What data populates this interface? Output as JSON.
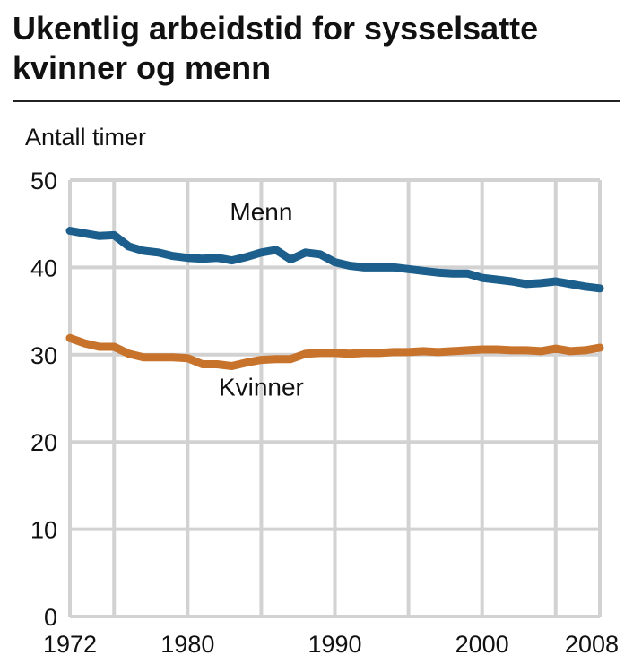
{
  "title": "Ukentlig arbeidstid for sysselsatte kvinner og menn",
  "chart_data": {
    "type": "line",
    "ylabel": "Antall timer",
    "xlabel": "",
    "xlim": [
      1972,
      2008
    ],
    "ylim": [
      0,
      50
    ],
    "grid": true,
    "y_ticks": [
      0,
      10,
      20,
      30,
      40,
      50
    ],
    "x_tick_labels": [
      1972,
      1980,
      1990,
      2000,
      2008
    ],
    "x_grid_years": [
      1972,
      1975,
      1980,
      1985,
      1990,
      1995,
      2000,
      2005,
      2008
    ],
    "series": [
      {
        "name": "Menn",
        "color": "#1c5f8c",
        "x": [
          1972,
          1973,
          1974,
          1975,
          1976,
          1977,
          1978,
          1979,
          1980,
          1981,
          1982,
          1983,
          1984,
          1985,
          1986,
          1987,
          1988,
          1989,
          1990,
          1991,
          1992,
          1993,
          1994,
          1995,
          1996,
          1997,
          1998,
          1999,
          2000,
          2001,
          2002,
          2003,
          2004,
          2005,
          2006,
          2007,
          2008
        ],
        "values": [
          44.2,
          43.9,
          43.6,
          43.7,
          42.4,
          41.9,
          41.7,
          41.3,
          41.1,
          41.0,
          41.1,
          40.8,
          41.2,
          41.7,
          42.0,
          40.9,
          41.7,
          41.5,
          40.6,
          40.2,
          40.0,
          40.0,
          40.0,
          39.8,
          39.6,
          39.4,
          39.3,
          39.3,
          38.8,
          38.6,
          38.4,
          38.1,
          38.2,
          38.4,
          38.1,
          37.8,
          37.6
        ]
      },
      {
        "name": "Kvinner",
        "color": "#c8732c",
        "x": [
          1972,
          1973,
          1974,
          1975,
          1976,
          1977,
          1978,
          1979,
          1980,
          1981,
          1982,
          1983,
          1984,
          1985,
          1986,
          1987,
          1988,
          1989,
          1990,
          1991,
          1992,
          1993,
          1994,
          1995,
          1996,
          1997,
          1998,
          1999,
          2000,
          2001,
          2002,
          2003,
          2004,
          2005,
          2006,
          2007,
          2008
        ],
        "values": [
          31.9,
          31.3,
          30.9,
          30.9,
          30.1,
          29.7,
          29.7,
          29.7,
          29.6,
          28.9,
          28.9,
          28.7,
          29.1,
          29.4,
          29.5,
          29.5,
          30.1,
          30.2,
          30.2,
          30.1,
          30.2,
          30.2,
          30.3,
          30.3,
          30.4,
          30.3,
          30.4,
          30.5,
          30.6,
          30.6,
          30.5,
          30.5,
          30.4,
          30.7,
          30.4,
          30.5,
          30.8
        ]
      }
    ],
    "annotations": [
      {
        "text": "Menn",
        "x": 1985.0,
        "y": 45.4
      },
      {
        "text": "Kvinner",
        "x": 1985.0,
        "y": 25.3
      }
    ]
  }
}
